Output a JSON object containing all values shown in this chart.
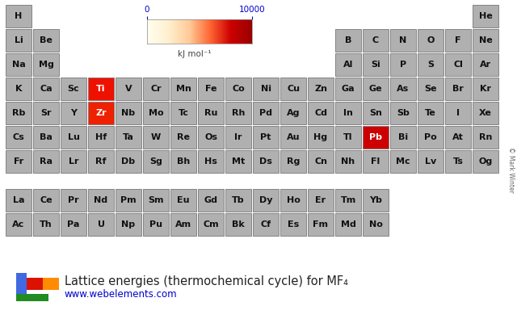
{
  "title": "Lattice energies (thermochemical cycle) for MF₄",
  "url": "www.webelements.com",
  "colorbar_label": "kJ mol⁻¹",
  "colorbar_vmin": 0,
  "colorbar_vmax": 10000,
  "bg_color": "#ffffff",
  "cell_color_default": "#b0b0b0",
  "cell_edge_color": "#777777",
  "cell_text_color": "#111111",
  "highlighted": {
    "Ti": {
      "color": "#ee1100",
      "text_color": "#ffffff"
    },
    "Zr": {
      "color": "#ee2200",
      "text_color": "#ffffff"
    },
    "Pb": {
      "color": "#cc0000",
      "text_color": "#ffffff"
    }
  },
  "elements": [
    {
      "symbol": "H",
      "row": 0,
      "col": 0
    },
    {
      "symbol": "He",
      "row": 0,
      "col": 17
    },
    {
      "symbol": "Li",
      "row": 1,
      "col": 0
    },
    {
      "symbol": "Be",
      "row": 1,
      "col": 1
    },
    {
      "symbol": "B",
      "row": 1,
      "col": 12
    },
    {
      "symbol": "C",
      "row": 1,
      "col": 13
    },
    {
      "symbol": "N",
      "row": 1,
      "col": 14
    },
    {
      "symbol": "O",
      "row": 1,
      "col": 15
    },
    {
      "symbol": "F",
      "row": 1,
      "col": 16
    },
    {
      "symbol": "Ne",
      "row": 1,
      "col": 17
    },
    {
      "symbol": "Na",
      "row": 2,
      "col": 0
    },
    {
      "symbol": "Mg",
      "row": 2,
      "col": 1
    },
    {
      "symbol": "Al",
      "row": 2,
      "col": 12
    },
    {
      "symbol": "Si",
      "row": 2,
      "col": 13
    },
    {
      "symbol": "P",
      "row": 2,
      "col": 14
    },
    {
      "symbol": "S",
      "row": 2,
      "col": 15
    },
    {
      "symbol": "Cl",
      "row": 2,
      "col": 16
    },
    {
      "symbol": "Ar",
      "row": 2,
      "col": 17
    },
    {
      "symbol": "K",
      "row": 3,
      "col": 0
    },
    {
      "symbol": "Ca",
      "row": 3,
      "col": 1
    },
    {
      "symbol": "Sc",
      "row": 3,
      "col": 2
    },
    {
      "symbol": "Ti",
      "row": 3,
      "col": 3
    },
    {
      "symbol": "V",
      "row": 3,
      "col": 4
    },
    {
      "symbol": "Cr",
      "row": 3,
      "col": 5
    },
    {
      "symbol": "Mn",
      "row": 3,
      "col": 6
    },
    {
      "symbol": "Fe",
      "row": 3,
      "col": 7
    },
    {
      "symbol": "Co",
      "row": 3,
      "col": 8
    },
    {
      "symbol": "Ni",
      "row": 3,
      "col": 9
    },
    {
      "symbol": "Cu",
      "row": 3,
      "col": 10
    },
    {
      "symbol": "Zn",
      "row": 3,
      "col": 11
    },
    {
      "symbol": "Ga",
      "row": 3,
      "col": 12
    },
    {
      "symbol": "Ge",
      "row": 3,
      "col": 13
    },
    {
      "symbol": "As",
      "row": 3,
      "col": 14
    },
    {
      "symbol": "Se",
      "row": 3,
      "col": 15
    },
    {
      "symbol": "Br",
      "row": 3,
      "col": 16
    },
    {
      "symbol": "Kr",
      "row": 3,
      "col": 17
    },
    {
      "symbol": "Rb",
      "row": 4,
      "col": 0
    },
    {
      "symbol": "Sr",
      "row": 4,
      "col": 1
    },
    {
      "symbol": "Y",
      "row": 4,
      "col": 2
    },
    {
      "symbol": "Zr",
      "row": 4,
      "col": 3
    },
    {
      "symbol": "Nb",
      "row": 4,
      "col": 4
    },
    {
      "symbol": "Mo",
      "row": 4,
      "col": 5
    },
    {
      "symbol": "Tc",
      "row": 4,
      "col": 6
    },
    {
      "symbol": "Ru",
      "row": 4,
      "col": 7
    },
    {
      "symbol": "Rh",
      "row": 4,
      "col": 8
    },
    {
      "symbol": "Pd",
      "row": 4,
      "col": 9
    },
    {
      "symbol": "Ag",
      "row": 4,
      "col": 10
    },
    {
      "symbol": "Cd",
      "row": 4,
      "col": 11
    },
    {
      "symbol": "In",
      "row": 4,
      "col": 12
    },
    {
      "symbol": "Sn",
      "row": 4,
      "col": 13
    },
    {
      "symbol": "Sb",
      "row": 4,
      "col": 14
    },
    {
      "symbol": "Te",
      "row": 4,
      "col": 15
    },
    {
      "symbol": "I",
      "row": 4,
      "col": 16
    },
    {
      "symbol": "Xe",
      "row": 4,
      "col": 17
    },
    {
      "symbol": "Cs",
      "row": 5,
      "col": 0
    },
    {
      "symbol": "Ba",
      "row": 5,
      "col": 1
    },
    {
      "symbol": "Lu",
      "row": 5,
      "col": 2
    },
    {
      "symbol": "Hf",
      "row": 5,
      "col": 3
    },
    {
      "symbol": "Ta",
      "row": 5,
      "col": 4
    },
    {
      "symbol": "W",
      "row": 5,
      "col": 5
    },
    {
      "symbol": "Re",
      "row": 5,
      "col": 6
    },
    {
      "symbol": "Os",
      "row": 5,
      "col": 7
    },
    {
      "symbol": "Ir",
      "row": 5,
      "col": 8
    },
    {
      "symbol": "Pt",
      "row": 5,
      "col": 9
    },
    {
      "symbol": "Au",
      "row": 5,
      "col": 10
    },
    {
      "symbol": "Hg",
      "row": 5,
      "col": 11
    },
    {
      "symbol": "Tl",
      "row": 5,
      "col": 12
    },
    {
      "symbol": "Pb",
      "row": 5,
      "col": 13
    },
    {
      "symbol": "Bi",
      "row": 5,
      "col": 14
    },
    {
      "symbol": "Po",
      "row": 5,
      "col": 15
    },
    {
      "symbol": "At",
      "row": 5,
      "col": 16
    },
    {
      "symbol": "Rn",
      "row": 5,
      "col": 17
    },
    {
      "symbol": "Fr",
      "row": 6,
      "col": 0
    },
    {
      "symbol": "Ra",
      "row": 6,
      "col": 1
    },
    {
      "symbol": "Lr",
      "row": 6,
      "col": 2
    },
    {
      "symbol": "Rf",
      "row": 6,
      "col": 3
    },
    {
      "symbol": "Db",
      "row": 6,
      "col": 4
    },
    {
      "symbol": "Sg",
      "row": 6,
      "col": 5
    },
    {
      "symbol": "Bh",
      "row": 6,
      "col": 6
    },
    {
      "symbol": "Hs",
      "row": 6,
      "col": 7
    },
    {
      "symbol": "Mt",
      "row": 6,
      "col": 8
    },
    {
      "symbol": "Ds",
      "row": 6,
      "col": 9
    },
    {
      "symbol": "Rg",
      "row": 6,
      "col": 10
    },
    {
      "symbol": "Cn",
      "row": 6,
      "col": 11
    },
    {
      "symbol": "Nh",
      "row": 6,
      "col": 12
    },
    {
      "symbol": "Fl",
      "row": 6,
      "col": 13
    },
    {
      "symbol": "Mc",
      "row": 6,
      "col": 14
    },
    {
      "symbol": "Lv",
      "row": 6,
      "col": 15
    },
    {
      "symbol": "Ts",
      "row": 6,
      "col": 16
    },
    {
      "symbol": "Og",
      "row": 6,
      "col": 17
    },
    {
      "symbol": "La",
      "row": 8,
      "col": 2
    },
    {
      "symbol": "Ce",
      "row": 8,
      "col": 3
    },
    {
      "symbol": "Pr",
      "row": 8,
      "col": 4
    },
    {
      "symbol": "Nd",
      "row": 8,
      "col": 5
    },
    {
      "symbol": "Pm",
      "row": 8,
      "col": 6
    },
    {
      "symbol": "Sm",
      "row": 8,
      "col": 7
    },
    {
      "symbol": "Eu",
      "row": 8,
      "col": 8
    },
    {
      "symbol": "Gd",
      "row": 8,
      "col": 9
    },
    {
      "symbol": "Tb",
      "row": 8,
      "col": 10
    },
    {
      "symbol": "Dy",
      "row": 8,
      "col": 11
    },
    {
      "symbol": "Ho",
      "row": 8,
      "col": 12
    },
    {
      "symbol": "Er",
      "row": 8,
      "col": 13
    },
    {
      "symbol": "Tm",
      "row": 8,
      "col": 14
    },
    {
      "symbol": "Yb",
      "row": 8,
      "col": 15
    },
    {
      "symbol": "Ac",
      "row": 9,
      "col": 2
    },
    {
      "symbol": "Th",
      "row": 9,
      "col": 3
    },
    {
      "symbol": "Pa",
      "row": 9,
      "col": 4
    },
    {
      "symbol": "U",
      "row": 9,
      "col": 5
    },
    {
      "symbol": "Np",
      "row": 9,
      "col": 6
    },
    {
      "symbol": "Pu",
      "row": 9,
      "col": 7
    },
    {
      "symbol": "Am",
      "row": 9,
      "col": 8
    },
    {
      "symbol": "Cm",
      "row": 9,
      "col": 9
    },
    {
      "symbol": "Bk",
      "row": 9,
      "col": 10
    },
    {
      "symbol": "Cf",
      "row": 9,
      "col": 11
    },
    {
      "symbol": "Es",
      "row": 9,
      "col": 12
    },
    {
      "symbol": "Fm",
      "row": 9,
      "col": 13
    },
    {
      "symbol": "Md",
      "row": 9,
      "col": 14
    },
    {
      "symbol": "No",
      "row": 9,
      "col": 15
    }
  ]
}
